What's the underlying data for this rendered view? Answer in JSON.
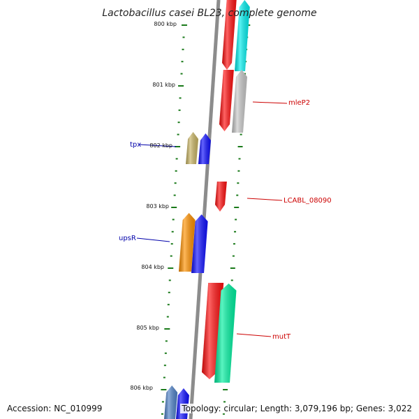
{
  "title": "Lactobacillus casei BL23, complete genome",
  "footer": {
    "accession": "Accession: NC_010999",
    "topology": "Topology: circular; Length: 3,079,196 bp; Genes: 3,022"
  },
  "ruler_labels": [
    "800 kbp",
    "801 kbp",
    "802 kbp",
    "803 kbp",
    "804 kbp",
    "805 kbp",
    "806 kbp"
  ],
  "colors": {
    "backbone": "#8c8c8c",
    "tick": "#1a7a1a",
    "label_forward": "#0000aa",
    "label_reverse": "#cc0000",
    "red": "#ff1010",
    "cyan": "#00eeee",
    "grey": "#c8c8c8",
    "olive": "#c8b464",
    "blue": "#1010ff",
    "orange": "#ff9100",
    "green": "#00f0a0",
    "steelblue": "#5082c8"
  },
  "gene_labels": [
    {
      "name": "tpx",
      "side": "left"
    },
    {
      "name": "upsR",
      "side": "left"
    },
    {
      "name": "mleP2",
      "side": "right"
    },
    {
      "name": "LCABL_08090",
      "side": "right"
    },
    {
      "name": "mutT",
      "side": "right"
    }
  ],
  "genes": [
    {
      "color": "red",
      "strand": "reverse",
      "label": ""
    },
    {
      "color": "cyan",
      "strand": "reverse",
      "label": ""
    },
    {
      "color": "red",
      "strand": "reverse",
      "label": ""
    },
    {
      "color": "grey",
      "strand": "reverse",
      "label": "mleP2"
    },
    {
      "color": "olive",
      "strand": "forward",
      "label": ""
    },
    {
      "color": "blue",
      "strand": "forward",
      "label": "tpx"
    },
    {
      "color": "red",
      "strand": "reverse",
      "label": "LCABL_08090"
    },
    {
      "color": "orange",
      "strand": "forward",
      "label": ""
    },
    {
      "color": "blue",
      "strand": "forward",
      "label": "upsR"
    },
    {
      "color": "red",
      "strand": "reverse",
      "label": ""
    },
    {
      "color": "green",
      "strand": "reverse",
      "label": "mutT"
    },
    {
      "color": "steelblue",
      "strand": "forward",
      "label": ""
    },
    {
      "color": "blue",
      "strand": "forward",
      "label": ""
    }
  ]
}
